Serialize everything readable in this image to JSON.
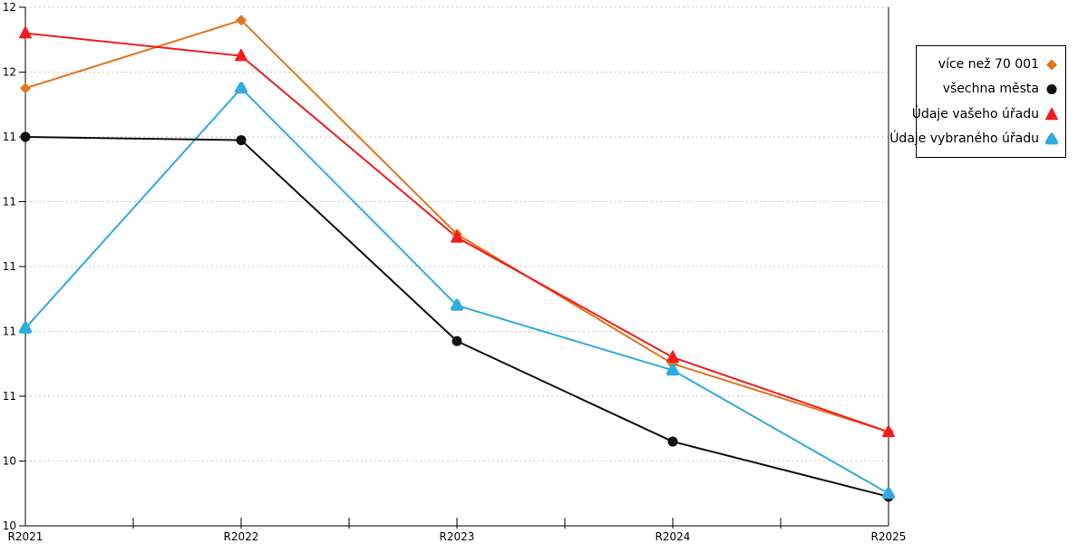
{
  "chart_data": {
    "type": "line",
    "title": "",
    "xlabel": "",
    "ylabel": "",
    "categories": [
      "R2021",
      "R2022",
      "R2023",
      "R2024",
      "R2025"
    ],
    "series": [
      {
        "name": "více než 70 001",
        "marker": "diamond",
        "color": "#E2751E",
        "values": [
          11.55,
          11.76,
          11.1,
          10.7,
          10.49
        ]
      },
      {
        "name": "všechna města",
        "marker": "circle",
        "color": "#111111",
        "values": [
          11.4,
          11.39,
          10.77,
          10.46,
          10.29
        ]
      },
      {
        "name": "Údaje vašeho úřadu",
        "marker": "triangle",
        "color": "#F21C1C",
        "values": [
          11.72,
          11.65,
          11.09,
          10.72,
          10.49
        ]
      },
      {
        "name": "Údaje vybraného úřadu",
        "marker": "triangle-rounded",
        "color": "#2FABE1",
        "values": [
          10.81,
          11.55,
          10.88,
          10.68,
          10.3
        ]
      }
    ],
    "ylim": [
      10.2,
      11.8
    ],
    "ytick_step": 0.2,
    "ytick_labels_top_to_bottom": [
      "12",
      "12",
      "11",
      "11",
      "11",
      "11",
      "11",
      "10",
      "10"
    ],
    "grid": "horizontal-dashed",
    "gridline_color": "#c8c8c8",
    "axis_color": "#000000",
    "legend_position": "right",
    "line_draw_order": [
      3,
      0,
      1,
      2
    ],
    "marker_draw_order": [
      0,
      1,
      2,
      3
    ]
  }
}
